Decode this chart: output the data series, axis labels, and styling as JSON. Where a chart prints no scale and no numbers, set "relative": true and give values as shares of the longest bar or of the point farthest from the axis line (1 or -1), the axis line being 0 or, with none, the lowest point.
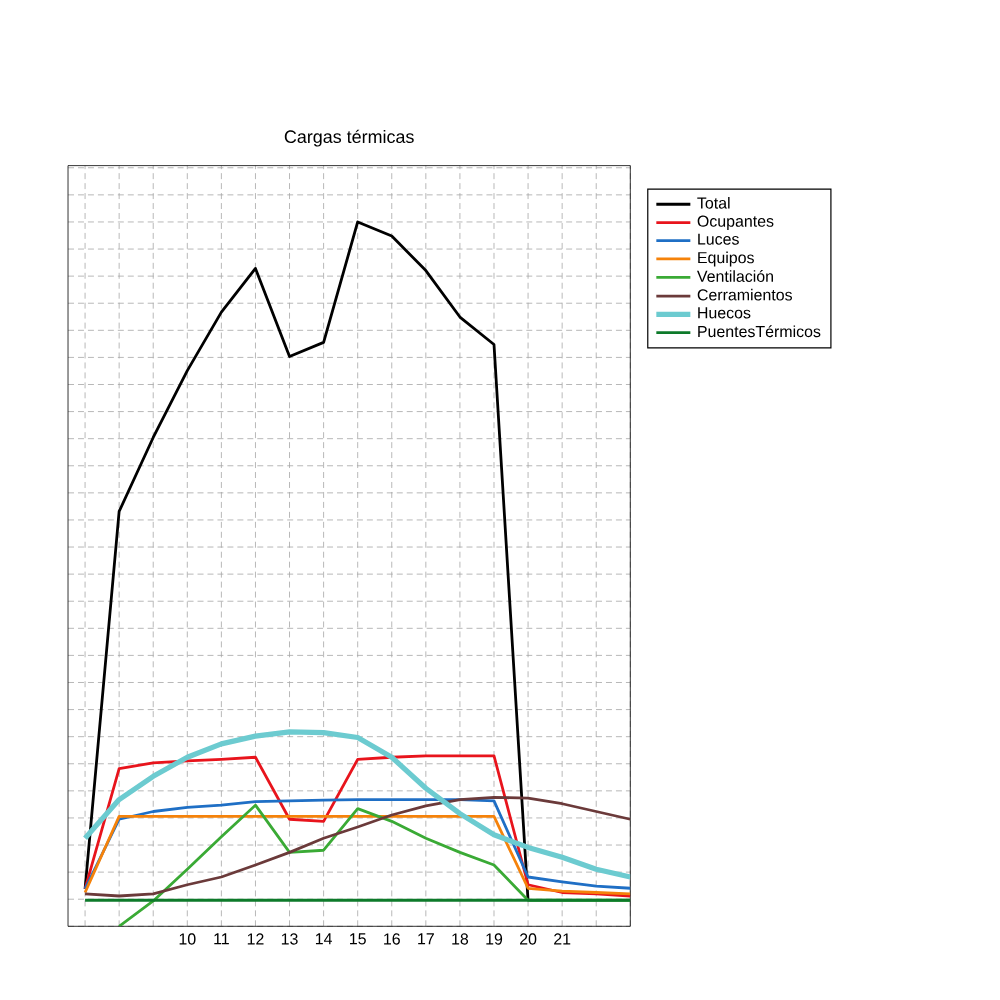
{
  "chart_data": {
    "type": "line",
    "title": "Cargas térmicas",
    "relative": true,
    "grid": true,
    "legend": "top right",
    "marker": "none",
    "line_style": "solid",
    "tick_labels": "x",
    "x": [
      7,
      8,
      9,
      10,
      11,
      12,
      13,
      14,
      15,
      16,
      17,
      18,
      19,
      20,
      21,
      22,
      23
    ],
    "xlim": [
      6.5,
      23
    ],
    "xticks": [
      {
        "value": 7,
        "label": null
      },
      {
        "value": 8,
        "label": null
      },
      {
        "value": 9,
        "label": null
      },
      10,
      11,
      12,
      13,
      14,
      15,
      16,
      17,
      18,
      19,
      20,
      21,
      {
        "value": 22,
        "label": null
      },
      {
        "value": 23,
        "label": null
      }
    ],
    "series": [
      {
        "name": "Total",
        "color": "#000000",
        "values": [
          0.053,
          0.589,
          0.694,
          0.789,
          0.872,
          0.934,
          0.809,
          0.829,
          1.0,
          0.98,
          0.931,
          0.865,
          0.826,
          0.036,
          null,
          null,
          null
        ]
      },
      {
        "name": "Ocupantes",
        "color": "#e8141c",
        "values": [
          0.053,
          0.224,
          0.232,
          0.235,
          0.237,
          0.24,
          0.152,
          0.149,
          0.237,
          0.24,
          0.242,
          0.242,
          0.242,
          0.059,
          0.048,
          0.046,
          0.043
        ]
      },
      {
        "name": "Luces",
        "color": "#1f6fc5",
        "values": [
          0.053,
          0.152,
          0.163,
          0.169,
          0.172,
          0.177,
          0.178,
          0.179,
          0.18,
          0.18,
          0.18,
          0.18,
          0.178,
          0.07,
          0.063,
          0.057,
          0.054
        ]
      },
      {
        "name": "Equipos",
        "color": "#f5820a",
        "values": [
          0.048,
          0.156,
          0.156,
          0.156,
          0.156,
          0.156,
          0.156,
          0.156,
          0.156,
          0.156,
          0.156,
          0.156,
          0.156,
          0.054,
          0.05,
          0.048,
          0.046
        ]
      },
      {
        "name": "Ventilación",
        "color": "#3aaa35",
        "values": [
          null,
          0.0,
          0.036,
          0.081,
          0.127,
          0.172,
          0.105,
          0.108,
          0.167,
          0.149,
          0.125,
          0.105,
          0.087,
          0.037,
          0.037,
          0.037,
          0.037
        ]
      },
      {
        "name": "Cerramientos",
        "color": "#6b3a3a",
        "values": [
          0.046,
          0.043,
          0.046,
          0.059,
          0.07,
          0.087,
          0.105,
          0.125,
          0.141,
          0.158,
          0.171,
          0.18,
          0.183,
          0.182,
          0.174,
          0.163,
          0.152
        ]
      },
      {
        "name": "Huecos",
        "color": "#6ccbd0",
        "values": [
          0.125,
          0.18,
          0.213,
          0.24,
          0.259,
          0.27,
          0.276,
          0.275,
          0.268,
          0.24,
          0.196,
          0.16,
          0.13,
          0.112,
          0.098,
          0.081,
          0.07
        ]
      },
      {
        "name": "PuentesTérmicos",
        "color": "#0d7a2a",
        "values": [
          0.037,
          0.037,
          0.037,
          0.037,
          0.037,
          0.037,
          0.037,
          0.037,
          0.037,
          0.037,
          0.037,
          0.037,
          0.037,
          0.037,
          0.037,
          0.037,
          0.037
        ]
      }
    ]
  }
}
